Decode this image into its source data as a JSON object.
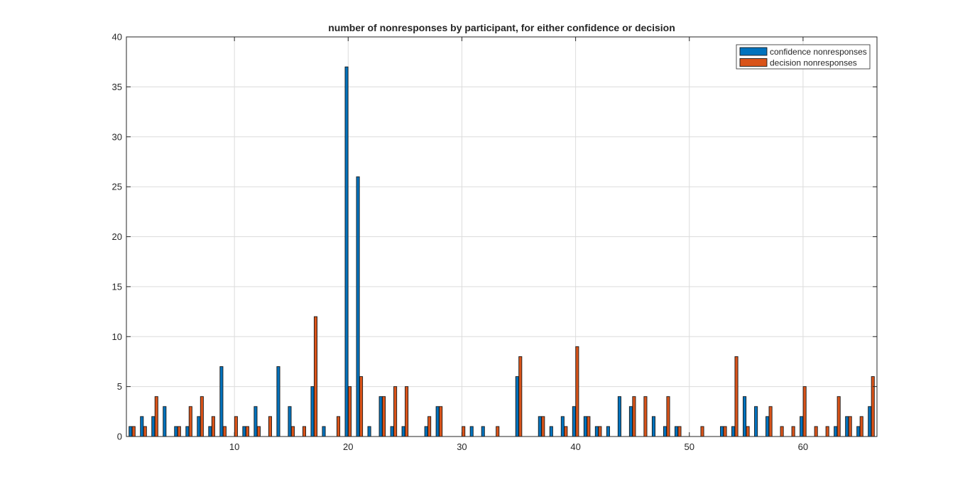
{
  "chart_data": {
    "type": "bar",
    "title": "number of nonresponses by participant, for either confidence or decision",
    "xlabel": "",
    "ylabel": "",
    "xlim": [
      0.5,
      66.5
    ],
    "ylim": [
      0,
      40
    ],
    "xticks": [
      10,
      20,
      30,
      40,
      50,
      60
    ],
    "yticks": [
      0,
      5,
      10,
      15,
      20,
      25,
      30,
      35,
      40
    ],
    "grid": true,
    "legend_position": "top-right",
    "x": [
      1,
      2,
      3,
      4,
      5,
      6,
      7,
      8,
      9,
      10,
      11,
      12,
      13,
      14,
      15,
      16,
      17,
      18,
      19,
      20,
      21,
      22,
      23,
      24,
      25,
      26,
      27,
      28,
      29,
      30,
      31,
      32,
      33,
      34,
      35,
      36,
      37,
      38,
      39,
      40,
      41,
      42,
      43,
      44,
      45,
      46,
      47,
      48,
      49,
      50,
      51,
      52,
      53,
      54,
      55,
      56,
      57,
      58,
      59,
      60,
      61,
      62,
      63,
      64,
      65,
      66
    ],
    "series": [
      {
        "name": "confidence nonresponses",
        "color": "#0072BD",
        "values": [
          1,
          2,
          2,
          3,
          1,
          1,
          2,
          1,
          7,
          0,
          1,
          3,
          0,
          7,
          3,
          0,
          5,
          1,
          0,
          37,
          26,
          1,
          4,
          1,
          1,
          0,
          1,
          3,
          0,
          0,
          1,
          1,
          0,
          0,
          6,
          0,
          2,
          1,
          2,
          3,
          2,
          1,
          1,
          4,
          3,
          0,
          2,
          1,
          1,
          0,
          0,
          0,
          1,
          1,
          4,
          3,
          2,
          0,
          0,
          2,
          0,
          0,
          1,
          2,
          1,
          3
        ]
      },
      {
        "name": "decision nonresponses",
        "color": "#D95319",
        "values": [
          1,
          1,
          4,
          0,
          1,
          3,
          4,
          2,
          1,
          2,
          1,
          1,
          2,
          0,
          1,
          1,
          12,
          0,
          2,
          5,
          6,
          0,
          4,
          5,
          5,
          0,
          2,
          3,
          0,
          1,
          0,
          0,
          1,
          0,
          8,
          0,
          2,
          0,
          1,
          9,
          2,
          1,
          0,
          0,
          4,
          4,
          0,
          4,
          1,
          0,
          1,
          0,
          1,
          8,
          1,
          0,
          3,
          1,
          1,
          5,
          1,
          1,
          4,
          2,
          2,
          6
        ]
      }
    ]
  }
}
